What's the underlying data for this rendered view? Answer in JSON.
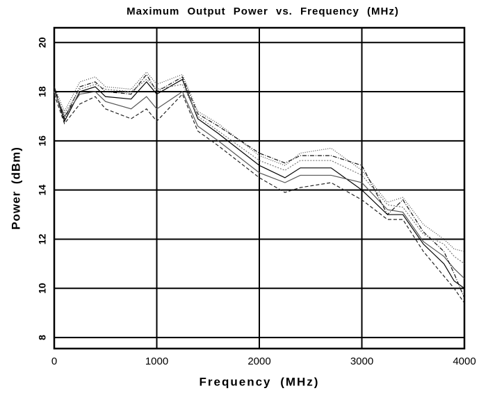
{
  "chart_data": {
    "type": "line",
    "title": "Maximum Output Power vs. Frequency (MHz)",
    "xlabel": "Frequency (MHz)",
    "ylabel": "Power (dBm)",
    "x": [
      0,
      100,
      250,
      400,
      500,
      750,
      900,
      1000,
      1250,
      1400,
      1600,
      2000,
      2250,
      2400,
      2700,
      3000,
      3250,
      3400,
      3600,
      3800,
      3900,
      4000
    ],
    "series": [
      {
        "color": "#000000",
        "dash": "none",
        "values": [
          18.1,
          16.8,
          18.0,
          18.2,
          17.8,
          17.7,
          18.4,
          17.9,
          18.5,
          16.9,
          16.3,
          15.0,
          14.5,
          14.9,
          14.9,
          14.0,
          13.0,
          13.0,
          11.8,
          11.0,
          10.3,
          10.0
        ]
      },
      {
        "color": "#555555",
        "dash": "none",
        "values": [
          18.0,
          17.0,
          17.9,
          18.0,
          17.6,
          17.3,
          17.8,
          17.3,
          18.0,
          16.6,
          16.0,
          14.7,
          14.3,
          14.6,
          14.6,
          14.3,
          13.2,
          13.1,
          11.9,
          11.3,
          10.8,
          10.4
        ]
      },
      {
        "color": "#222222",
        "dash": "5,3",
        "values": [
          17.9,
          16.7,
          17.5,
          17.8,
          17.3,
          16.9,
          17.3,
          16.8,
          17.9,
          16.4,
          15.8,
          14.5,
          13.9,
          14.1,
          14.3,
          13.6,
          12.8,
          12.8,
          11.5,
          10.5,
          10.0,
          9.4
        ]
      },
      {
        "color": "#444444",
        "dash": "1,2",
        "values": [
          18.2,
          17.2,
          18.4,
          18.6,
          18.2,
          18.1,
          18.8,
          18.3,
          18.7,
          17.2,
          16.7,
          15.4,
          15.0,
          15.5,
          15.7,
          14.8,
          13.5,
          13.7,
          12.6,
          12.0,
          11.6,
          11.5
        ]
      },
      {
        "color": "#111111",
        "dash": "6,2,1,2",
        "values": [
          18.2,
          16.9,
          18.2,
          18.4,
          18.0,
          17.9,
          18.7,
          18.0,
          18.6,
          17.1,
          16.6,
          15.5,
          15.1,
          15.4,
          15.4,
          15.0,
          13.0,
          13.6,
          12.3,
          11.5,
          10.6,
          9.6
        ]
      },
      {
        "color": "#777777",
        "dash": "2,2",
        "values": [
          18.0,
          17.1,
          18.1,
          18.3,
          18.1,
          18.0,
          18.5,
          18.1,
          18.3,
          17.0,
          16.4,
          15.2,
          14.8,
          15.2,
          15.2,
          14.6,
          13.4,
          13.3,
          12.2,
          11.8,
          11.3,
          11.0
        ]
      }
    ],
    "xlim": [
      0,
      4000
    ],
    "xticks": [
      0,
      1000,
      2000,
      3000,
      4000
    ],
    "ylim": [
      7.55,
      20.6
    ],
    "yticks": [
      8,
      10,
      12,
      14,
      16,
      18,
      20
    ],
    "grid": true
  }
}
